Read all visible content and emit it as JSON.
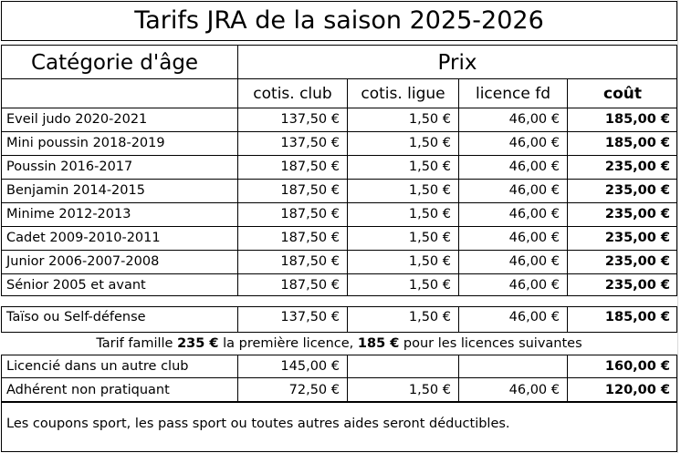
{
  "title": "Tarifs JRA de la saison 2025-2026",
  "header": {
    "category": "Catégorie d'âge",
    "price": "Prix",
    "columns": [
      "cotis. club",
      "cotis. ligue",
      "licence fd",
      "coût"
    ]
  },
  "age_rows": [
    {
      "label": "Eveil judo 2020-2021",
      "club": "137,50 €",
      "ligue": "1,50 €",
      "licence": "46,00 €",
      "cout": "185,00 €"
    },
    {
      "label": "Mini poussin 2018-2019",
      "club": "137,50 €",
      "ligue": "1,50 €",
      "licence": "46,00 €",
      "cout": "185,00 €"
    },
    {
      "label": "Poussin 2016-2017",
      "club": "187,50 €",
      "ligue": "1,50 €",
      "licence": "46,00 €",
      "cout": "235,00 €"
    },
    {
      "label": "Benjamin 2014-2015",
      "club": "187,50 €",
      "ligue": "1,50 €",
      "licence": "46,00 €",
      "cout": "235,00 €"
    },
    {
      "label": "Minime 2012-2013",
      "club": "187,50 €",
      "ligue": "1,50 €",
      "licence": "46,00 €",
      "cout": "235,00 €"
    },
    {
      "label": "Cadet 2009-2010-2011",
      "club": "187,50 €",
      "ligue": "1,50 €",
      "licence": "46,00 €",
      "cout": "235,00 €"
    },
    {
      "label": "Junior 2006-2007-2008",
      "club": "187,50 €",
      "ligue": "1,50 €",
      "licence": "46,00 €",
      "cout": "235,00 €"
    },
    {
      "label": "Sénior 2005 et avant",
      "club": "187,50 €",
      "ligue": "1,50 €",
      "licence": "46,00 €",
      "cout": "235,00 €"
    }
  ],
  "taiso": {
    "label": "Taïso ou Self-défense",
    "club": "137,50 €",
    "ligue": "1,50 €",
    "licence": "46,00 €",
    "cout": "185,00 €"
  },
  "famille": {
    "prefix": "Tarif famille ",
    "first_amount": "235 €",
    "middle": " la première licence, ",
    "next_amount": "185 €",
    "suffix": " pour les licences  suivantes"
  },
  "other_rows": [
    {
      "label": "Licencié dans un autre club",
      "club": "145,00 €",
      "ligue": "",
      "licence": "",
      "cout": "160,00 €"
    },
    {
      "label": "Adhérent non pratiquant",
      "club": "72,50 €",
      "ligue": "1,50 €",
      "licence": "46,00 €",
      "cout": "120,00 €"
    }
  ],
  "note": "Les coupons sport, les pass sport ou toutes autres aides seront déductibles."
}
